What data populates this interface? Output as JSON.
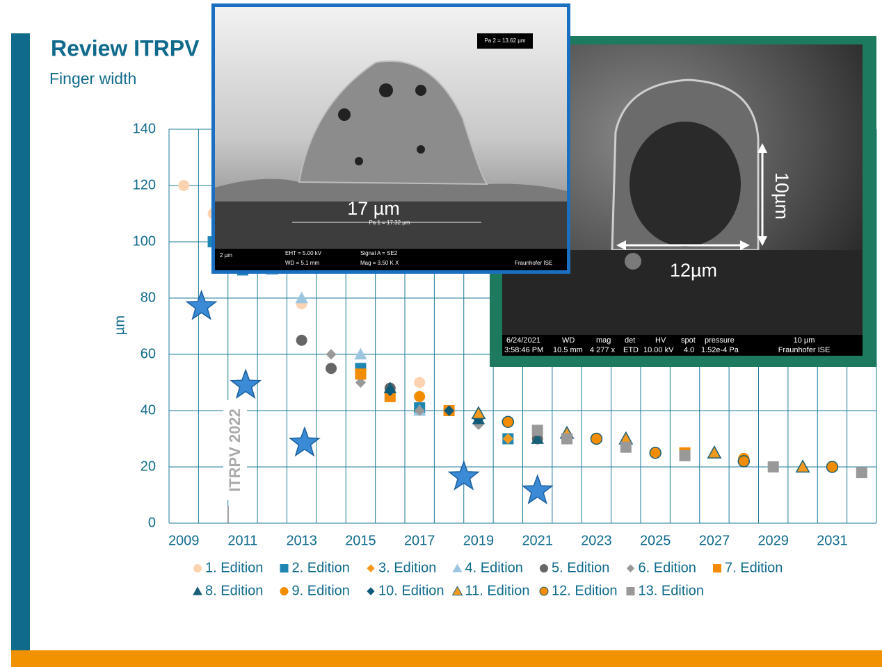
{
  "header": {
    "title": "Review ITRPV",
    "subtitle": "Finger width"
  },
  "chart_data": {
    "type": "scatter",
    "y_label": "µm",
    "annotation": "ITRPV 2022",
    "xlim": [
      2008.5,
      2032.5
    ],
    "xticks": [
      2009,
      2011,
      2013,
      2015,
      2017,
      2019,
      2021,
      2023,
      2025,
      2027,
      2029,
      2031
    ],
    "ylim": [
      0,
      140
    ],
    "yticks": [
      0,
      20,
      40,
      60,
      80,
      100,
      120,
      140
    ],
    "grid": true,
    "series": [
      {
        "name": "1. Edition",
        "color": "#fbd3b0",
        "marker": "circle",
        "x": [
          2009,
          2010,
          2013,
          2017
        ],
        "values": [
          120,
          110,
          78,
          50
        ]
      },
      {
        "name": "2. Edition",
        "color": "#1f86b3",
        "marker": "square",
        "x": [
          2010,
          2011,
          2015,
          2017,
          2020
        ],
        "values": [
          100,
          90,
          55,
          41,
          30
        ]
      },
      {
        "name": "3. Edition",
        "color": "#f39a1e",
        "marker": "diamond",
        "x": [
          2015,
          2020
        ],
        "values": [
          52,
          30
        ]
      },
      {
        "name": "4. Edition",
        "color": "#9cc6e0",
        "marker": "triangle",
        "x": [
          2012,
          2013,
          2015,
          2017
        ],
        "values": [
          90,
          80,
          60,
          40
        ]
      },
      {
        "name": "5. Edition",
        "color": "#666666",
        "marker": "circle",
        "x": [
          2013,
          2014,
          2016,
          2021
        ],
        "values": [
          65,
          55,
          48,
          30
        ]
      },
      {
        "name": "6. Edition",
        "color": "#999999",
        "marker": "diamond",
        "x": [
          2014,
          2015,
          2017,
          2019,
          2021
        ],
        "values": [
          60,
          50,
          40,
          35,
          32
        ]
      },
      {
        "name": "7. Edition",
        "color": "#f58a07",
        "marker": "square",
        "x": [
          2015,
          2016,
          2018,
          2022,
          2026
        ],
        "values": [
          53,
          45,
          40,
          30,
          25
        ]
      },
      {
        "name": "8. Edition",
        "color": "#1a5f78",
        "marker": "triangle",
        "x": [
          2016,
          2019,
          2021
        ],
        "values": [
          48,
          37,
          30
        ]
      },
      {
        "name": "9. Edition",
        "color": "#f28c00",
        "marker": "circle",
        "x": [
          2015,
          2017,
          2020,
          2022,
          2028
        ],
        "values": [
          53,
          45,
          36,
          30,
          23
        ]
      },
      {
        "name": "10. Edition",
        "color": "#0b5a7a",
        "marker": "diamond",
        "x": [
          2016,
          2018,
          2019,
          2021
        ],
        "values": [
          47,
          40,
          37,
          33
        ]
      },
      {
        "name": "11. Edition",
        "color": "#f39a1e",
        "edgecolor": "#1a5f78",
        "marker": "triangle",
        "x": [
          2019,
          2022,
          2024,
          2027,
          2030
        ],
        "values": [
          39,
          32,
          30,
          25,
          20
        ]
      },
      {
        "name": "12. Edition",
        "color": "#f28c00",
        "edgecolor": "#1a5f78",
        "marker": "circle",
        "x": [
          2020,
          2023,
          2025,
          2028,
          2031
        ],
        "values": [
          36,
          30,
          25,
          22,
          20
        ]
      },
      {
        "name": "13. Edition",
        "color": "#999999",
        "marker": "square",
        "x": [
          2021,
          2022,
          2024,
          2026,
          2029,
          2032
        ],
        "values": [
          33,
          30,
          27,
          24,
          20,
          18
        ]
      }
    ],
    "stars": {
      "color": "#3a8ad6",
      "x": [
        2009.6,
        2011.1,
        2013.1,
        2018.5,
        2021
      ],
      "values": [
        77,
        49,
        28.5,
        16.5,
        11.5
      ]
    }
  },
  "images": [
    {
      "measure": "17 µm",
      "labels": [
        "Pa 2 = 13.62 µm",
        "Pa 1 = 17.32 µm",
        "2 µm",
        "EHT = 5.00 kV",
        "WD = 5.1 mm",
        "Signal A = SE2",
        "Mag = 3.50 K X",
        "Fraunhofer ISE"
      ]
    },
    {
      "width": "12µm",
      "height": "10µm",
      "labels": [
        "6/24/2021",
        "3:58:46 PM",
        "WD",
        "10.5 mm",
        "mag",
        "4 277 x",
        "det",
        "ETD",
        "HV",
        "10.00 kV",
        "spot",
        "4.0",
        "pressure",
        "1.52e-4 Pa",
        "10 µm",
        "Fraunhofer ISE"
      ]
    }
  ]
}
